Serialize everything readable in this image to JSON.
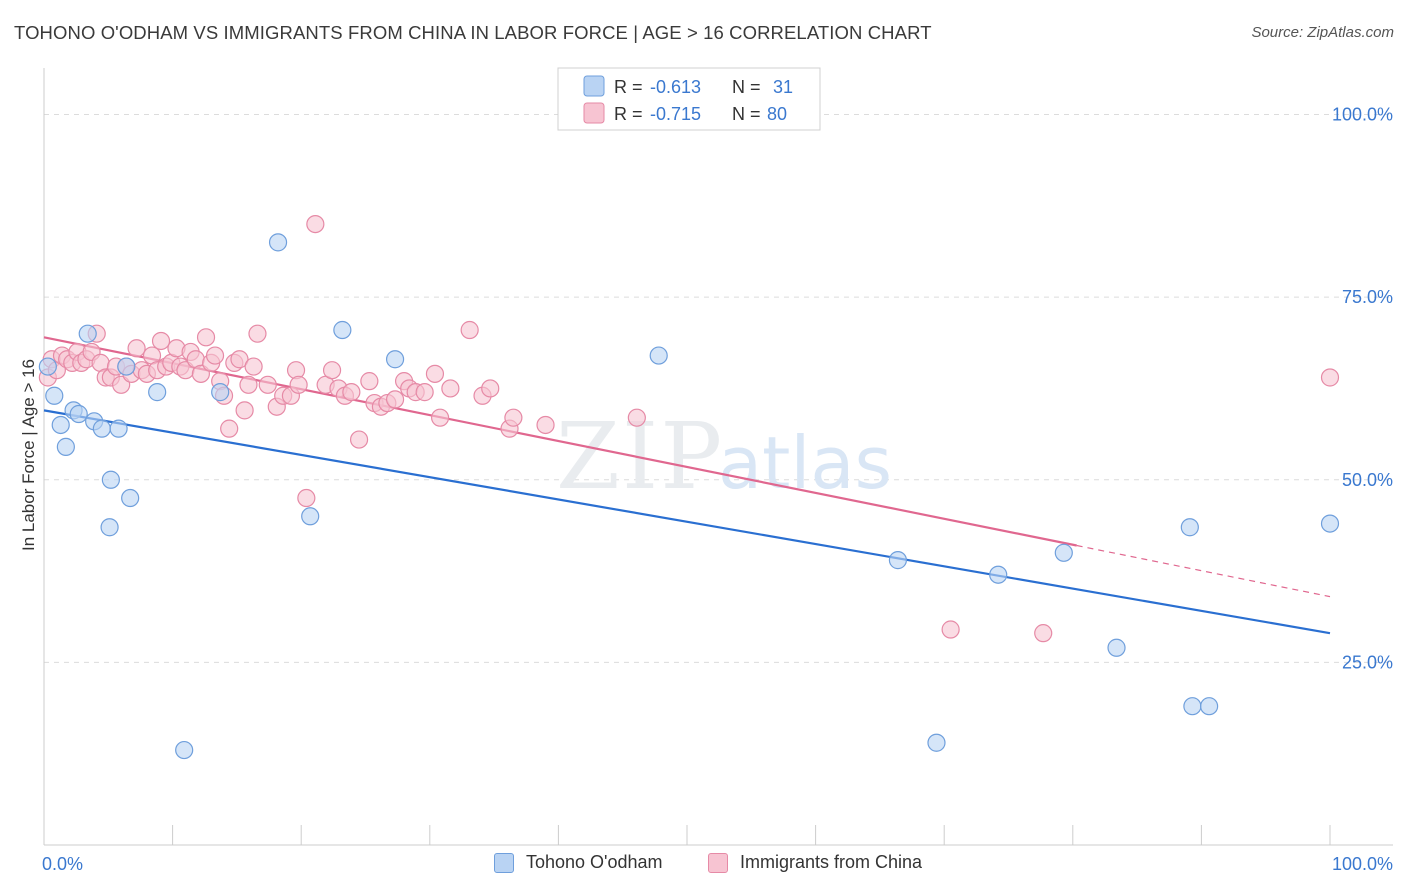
{
  "header": {
    "title": "TOHONO O'ODHAM VS IMMIGRANTS FROM CHINA IN LABOR FORCE | AGE > 16 CORRELATION CHART",
    "source": "Source: ZipAtlas.com"
  },
  "watermark": {
    "zip": "ZIP",
    "atlas": "atlas"
  },
  "colors": {
    "blue_fill": "#b9d3f3",
    "blue_stroke": "#6f9fdc",
    "blue_line": "#2a6fd1",
    "pink_fill": "#f7c4d2",
    "pink_stroke": "#e68aa6",
    "pink_line": "#e0678f",
    "value_text": "#3a78cf",
    "grid": "#dcdcdc"
  },
  "legend": {
    "rows": [
      {
        "r_label": "R =",
        "r_value": "-0.613",
        "n_label": "N =",
        "n_value": "31",
        "color": "#b9d3f3",
        "stroke": "#6f9fdc"
      },
      {
        "r_label": "R =",
        "r_value": "-0.715",
        "n_label": "N =",
        "n_value": "80",
        "color": "#f7c4d2",
        "stroke": "#e68aa6"
      }
    ]
  },
  "chart_data": {
    "type": "scatter",
    "title": "TOHONO O'ODHAM VS IMMIGRANTS FROM CHINA IN LABOR FORCE | AGE > 16 CORRELATION CHART",
    "xlabel": "",
    "ylabel": "In Labor Force | Age > 16",
    "xlim": [
      0,
      100
    ],
    "ylim": [
      0,
      105
    ],
    "x_tick_labels": [
      {
        "value": 0,
        "label": "0.0%"
      },
      {
        "value": 100,
        "label": "100.0%"
      }
    ],
    "y_tick_labels": [
      {
        "value": 25,
        "label": "25.0%"
      },
      {
        "value": 50,
        "label": "50.0%"
      },
      {
        "value": 75,
        "label": "75.0%"
      },
      {
        "value": 100,
        "label": "100.0%"
      }
    ],
    "grid": true,
    "legend_position": "top-center",
    "series": [
      {
        "name": "Tohono O'odham",
        "color": "#b9d3f3",
        "points": [
          [
            0.3,
            65.5
          ],
          [
            0.8,
            61.5
          ],
          [
            1.3,
            57.5
          ],
          [
            1.7,
            54.5
          ],
          [
            2.3,
            59.5
          ],
          [
            2.7,
            59.0
          ],
          [
            3.4,
            70.0
          ],
          [
            3.9,
            58.0
          ],
          [
            4.5,
            57.0
          ],
          [
            5.2,
            50.0
          ],
          [
            5.1,
            43.5
          ],
          [
            5.8,
            57.0
          ],
          [
            6.7,
            47.5
          ],
          [
            6.4,
            65.5
          ],
          [
            8.8,
            62.0
          ],
          [
            10.9,
            13.0
          ],
          [
            13.7,
            62.0
          ],
          [
            18.2,
            82.5
          ],
          [
            20.7,
            45.0
          ],
          [
            23.2,
            70.5
          ],
          [
            27.3,
            66.5
          ],
          [
            47.8,
            67.0
          ],
          [
            66.4,
            39.0
          ],
          [
            69.4,
            14.0
          ],
          [
            74.2,
            37.0
          ],
          [
            79.3,
            40.0
          ],
          [
            83.4,
            27.0
          ],
          [
            89.1,
            43.5
          ],
          [
            89.3,
            19.0
          ],
          [
            90.6,
            19.0
          ],
          [
            100.0,
            44.0
          ]
        ],
        "trend": {
          "x0": 0,
          "y0": 59.5,
          "x1": 100,
          "y1": 29.0
        }
      },
      {
        "name": "Immigrants from China",
        "color": "#f7c4d2",
        "points": [
          [
            0.3,
            64.0
          ],
          [
            0.6,
            66.5
          ],
          [
            1.0,
            65.0
          ],
          [
            1.4,
            67.0
          ],
          [
            1.8,
            66.5
          ],
          [
            2.2,
            66.0
          ],
          [
            2.6,
            67.5
          ],
          [
            2.9,
            66.0
          ],
          [
            3.3,
            66.5
          ],
          [
            3.7,
            67.5
          ],
          [
            4.1,
            70.0
          ],
          [
            4.4,
            66.0
          ],
          [
            4.8,
            64.0
          ],
          [
            5.2,
            64.0
          ],
          [
            5.6,
            65.5
          ],
          [
            6.0,
            63.0
          ],
          [
            6.4,
            65.5
          ],
          [
            6.8,
            64.5
          ],
          [
            7.2,
            68.0
          ],
          [
            7.6,
            65.0
          ],
          [
            8.0,
            64.5
          ],
          [
            8.4,
            67.0
          ],
          [
            8.8,
            65.0
          ],
          [
            9.1,
            69.0
          ],
          [
            9.5,
            65.5
          ],
          [
            9.9,
            66.0
          ],
          [
            10.3,
            68.0
          ],
          [
            10.6,
            65.5
          ],
          [
            11.0,
            65.0
          ],
          [
            11.4,
            67.5
          ],
          [
            11.8,
            66.5
          ],
          [
            12.2,
            64.5
          ],
          [
            12.6,
            69.5
          ],
          [
            13.0,
            66.0
          ],
          [
            13.3,
            67.0
          ],
          [
            13.7,
            63.5
          ],
          [
            14.0,
            61.5
          ],
          [
            14.4,
            57.0
          ],
          [
            14.8,
            66.0
          ],
          [
            15.2,
            66.5
          ],
          [
            15.6,
            59.5
          ],
          [
            15.9,
            63.0
          ],
          [
            16.3,
            65.5
          ],
          [
            16.6,
            70.0
          ],
          [
            17.4,
            63.0
          ],
          [
            18.1,
            60.0
          ],
          [
            18.6,
            61.5
          ],
          [
            19.2,
            61.5
          ],
          [
            19.6,
            65.0
          ],
          [
            19.8,
            63.0
          ],
          [
            20.4,
            47.5
          ],
          [
            21.1,
            85.0
          ],
          [
            21.9,
            63.0
          ],
          [
            22.4,
            65.0
          ],
          [
            22.9,
            62.5
          ],
          [
            23.4,
            61.5
          ],
          [
            23.9,
            62.0
          ],
          [
            24.5,
            55.5
          ],
          [
            25.3,
            63.5
          ],
          [
            25.7,
            60.5
          ],
          [
            26.2,
            60.0
          ],
          [
            26.7,
            60.5
          ],
          [
            27.3,
            61.0
          ],
          [
            28.0,
            63.5
          ],
          [
            28.4,
            62.5
          ],
          [
            28.9,
            62.0
          ],
          [
            29.6,
            62.0
          ],
          [
            30.4,
            64.5
          ],
          [
            30.8,
            58.5
          ],
          [
            31.6,
            62.5
          ],
          [
            33.1,
            70.5
          ],
          [
            34.1,
            61.5
          ],
          [
            34.7,
            62.5
          ],
          [
            36.2,
            57.0
          ],
          [
            36.5,
            58.5
          ],
          [
            39.0,
            57.5
          ],
          [
            46.1,
            58.5
          ],
          [
            70.5,
            29.5
          ],
          [
            77.7,
            29.0
          ],
          [
            100.0,
            64.0
          ]
        ],
        "trend": {
          "x0": 0,
          "y0": 69.5,
          "x1": 80.3,
          "y1": 41.0
        },
        "trend_dashed": {
          "x0": 80.3,
          "y0": 41.0,
          "x1": 100,
          "y1": 34.0
        }
      }
    ]
  }
}
